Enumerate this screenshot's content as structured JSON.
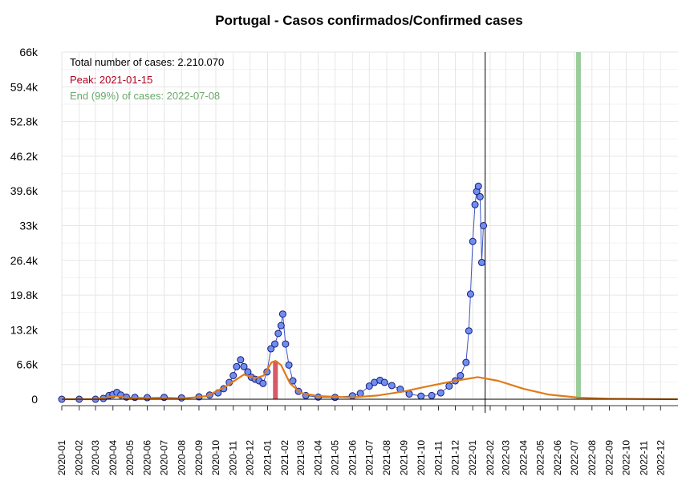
{
  "chart_data": {
    "type": "line",
    "title": "Portugal - Casos confirmados/Confirmed cases",
    "xlabel": "",
    "ylabel": "",
    "ylim": [
      0,
      66000
    ],
    "y_ticks": [
      0,
      6600,
      13200,
      19800,
      26400,
      33000,
      39600,
      46200,
      52800,
      59400,
      66000
    ],
    "y_tick_labels": [
      "0",
      "6.6k",
      "13.2k",
      "19.8k",
      "26.4k",
      "33k",
      "39.6k",
      "46.2k",
      "52.8k",
      "59.4k",
      "66k"
    ],
    "x_range": [
      "2020-01-01",
      "2023-01-01"
    ],
    "x_tick_labels": [
      "2020-01",
      "2020-02",
      "2020-03",
      "2020-04",
      "2020-05",
      "2020-06",
      "2020-07",
      "2020-08",
      "2020-09",
      "2020-10",
      "2020-11",
      "2020-12",
      "2021-01",
      "2021-02",
      "2021-03",
      "2021-04",
      "2021-05",
      "2021-06",
      "2021-07",
      "2021-08",
      "2021-09",
      "2021-10",
      "2021-11",
      "2021-12",
      "2022-01",
      "2022-02",
      "2022-03",
      "2022-04",
      "2022-05",
      "2022-06",
      "2022-07",
      "2022-08",
      "2022-09",
      "2022-10",
      "2022-11",
      "2022-12"
    ],
    "grid": true,
    "annotations": {
      "total": "Total number of cases: 2.210.070",
      "peak": "Peak: 2021-01-15",
      "end": "End (99%) of cases: 2022-07-08"
    },
    "peak_date": "2021-01-15",
    "end_date": "2022-07-08",
    "current_date": "2022-01-23",
    "colors": {
      "observed_fill": "#6f8ff0",
      "observed_stroke": "#1a1a7a",
      "fit_line": "#e07b1a",
      "peak": "#cc2233",
      "end": "#90c890",
      "end_text": "#6aa86a",
      "peak_text": "#b00020",
      "current_line": "#000000"
    },
    "series": [
      {
        "name": "observed",
        "points": [
          [
            "2020-01-01",
            0
          ],
          [
            "2020-02-01",
            0
          ],
          [
            "2020-03-01",
            0
          ],
          [
            "2020-03-15",
            150
          ],
          [
            "2020-03-25",
            700
          ],
          [
            "2020-04-01",
            900
          ],
          [
            "2020-04-08",
            1300
          ],
          [
            "2020-04-15",
            800
          ],
          [
            "2020-04-25",
            400
          ],
          [
            "2020-05-10",
            350
          ],
          [
            "2020-06-01",
            300
          ],
          [
            "2020-07-01",
            350
          ],
          [
            "2020-08-01",
            250
          ],
          [
            "2020-09-01",
            450
          ],
          [
            "2020-09-20",
            800
          ],
          [
            "2020-10-05",
            1200
          ],
          [
            "2020-10-15",
            2000
          ],
          [
            "2020-10-25",
            3200
          ],
          [
            "2020-11-01",
            4500
          ],
          [
            "2020-11-07",
            6200
          ],
          [
            "2020-11-14",
            7500
          ],
          [
            "2020-11-20",
            6200
          ],
          [
            "2020-11-27",
            5200
          ],
          [
            "2020-12-03",
            4200
          ],
          [
            "2020-12-10",
            3800
          ],
          [
            "2020-12-17",
            3500
          ],
          [
            "2020-12-24",
            3000
          ],
          [
            "2020-12-31",
            5200
          ],
          [
            "2021-01-07",
            9600
          ],
          [
            "2021-01-14",
            10500
          ],
          [
            "2021-01-20",
            12500
          ],
          [
            "2021-01-25",
            14000
          ],
          [
            "2021-01-28",
            16200
          ],
          [
            "2021-02-02",
            10500
          ],
          [
            "2021-02-08",
            6500
          ],
          [
            "2021-02-15",
            3500
          ],
          [
            "2021-02-25",
            1500
          ],
          [
            "2021-03-10",
            700
          ],
          [
            "2021-04-01",
            400
          ],
          [
            "2021-05-01",
            350
          ],
          [
            "2021-06-01",
            650
          ],
          [
            "2021-06-15",
            1100
          ],
          [
            "2021-07-01",
            2500
          ],
          [
            "2021-07-10",
            3200
          ],
          [
            "2021-07-20",
            3600
          ],
          [
            "2021-07-28",
            3200
          ],
          [
            "2021-08-10",
            2600
          ],
          [
            "2021-08-25",
            1900
          ],
          [
            "2021-09-10",
            1000
          ],
          [
            "2021-10-01",
            600
          ],
          [
            "2021-10-20",
            700
          ],
          [
            "2021-11-05",
            1200
          ],
          [
            "2021-11-20",
            2500
          ],
          [
            "2021-12-01",
            3500
          ],
          [
            "2021-12-10",
            4500
          ],
          [
            "2021-12-20",
            7000
          ],
          [
            "2021-12-25",
            13000
          ],
          [
            "2021-12-28",
            20000
          ],
          [
            "2022-01-01",
            30000
          ],
          [
            "2022-01-05",
            37000
          ],
          [
            "2022-01-08",
            39500
          ],
          [
            "2022-01-11",
            40500
          ],
          [
            "2022-01-14",
            38500
          ],
          [
            "2022-01-17",
            26000
          ],
          [
            "2022-01-20",
            33000
          ]
        ]
      },
      {
        "name": "fit",
        "points": [
          [
            "2020-01-01",
            0
          ],
          [
            "2020-03-01",
            0
          ],
          [
            "2020-04-05",
            600
          ],
          [
            "2020-05-01",
            200
          ],
          [
            "2020-08-01",
            100
          ],
          [
            "2020-09-15",
            600
          ],
          [
            "2020-10-20",
            2500
          ],
          [
            "2020-11-20",
            4700
          ],
          [
            "2020-12-10",
            4000
          ],
          [
            "2020-12-25",
            4500
          ],
          [
            "2021-01-08",
            7000
          ],
          [
            "2021-01-15",
            7300
          ],
          [
            "2021-01-25",
            6500
          ],
          [
            "2021-02-10",
            3000
          ],
          [
            "2021-03-01",
            1200
          ],
          [
            "2021-04-01",
            600
          ],
          [
            "2021-06-01",
            350
          ],
          [
            "2021-07-15",
            700
          ],
          [
            "2021-09-01",
            1500
          ],
          [
            "2021-10-15",
            2500
          ],
          [
            "2021-12-01",
            3500
          ],
          [
            "2022-01-10",
            4200
          ],
          [
            "2022-02-15",
            3500
          ],
          [
            "2022-04-01",
            2000
          ],
          [
            "2022-05-15",
            900
          ],
          [
            "2022-07-08",
            300
          ],
          [
            "2022-09-01",
            100
          ],
          [
            "2022-12-31",
            0
          ]
        ]
      }
    ]
  }
}
